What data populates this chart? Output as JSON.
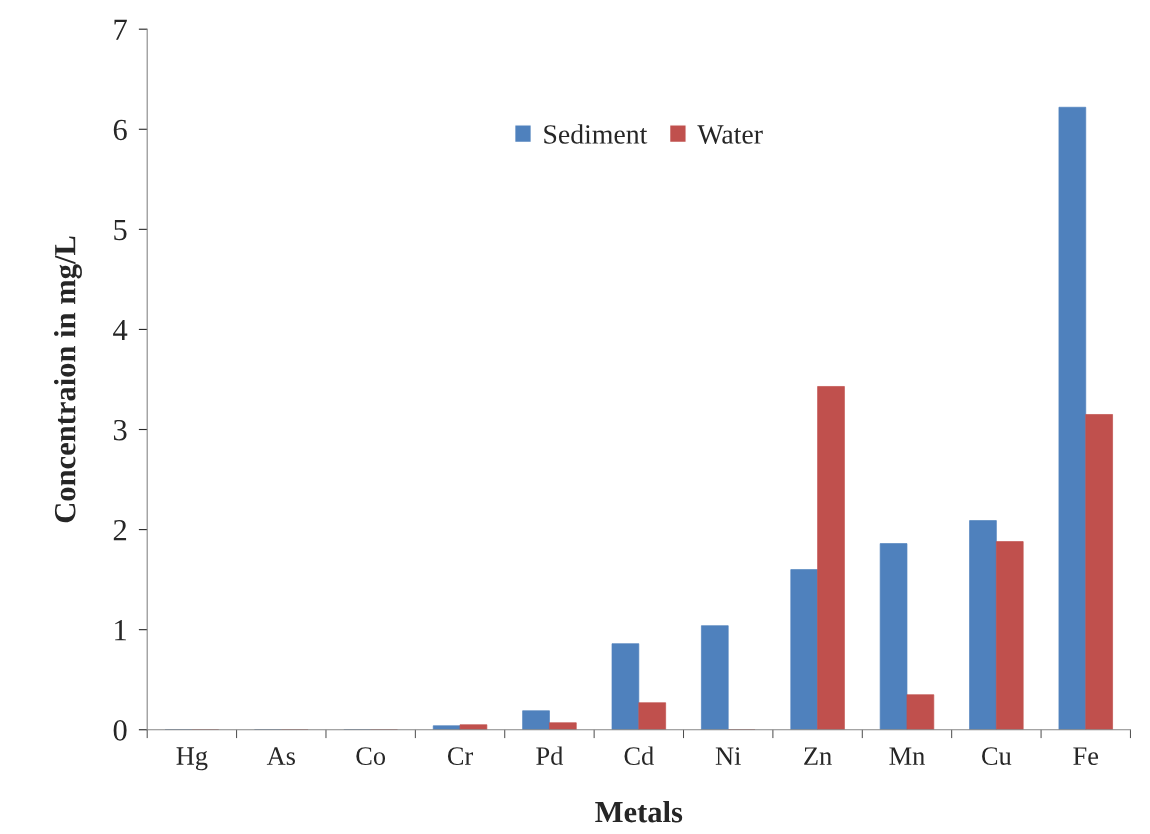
{
  "chart_data": {
    "type": "bar",
    "xlabel": "Metals",
    "ylabel": "Concentraion in mg/L",
    "categories": [
      "Hg",
      "As",
      "Co",
      "Cr",
      "Pd",
      "Cd",
      "Ni",
      "Zn",
      "Mn",
      "Cu",
      "Fe"
    ],
    "series": [
      {
        "name": "Sediment",
        "color": "#4f81bd",
        "values": [
          0,
          0,
          0,
          0.04,
          0.19,
          0.86,
          1.04,
          1.6,
          1.86,
          2.09,
          6.22
        ]
      },
      {
        "name": "Water",
        "color": "#c0504d",
        "values": [
          0,
          0,
          0,
          0.05,
          0.07,
          0.27,
          0,
          3.43,
          0.35,
          1.88,
          3.15
        ]
      }
    ],
    "ylim": [
      0,
      7
    ],
    "yticks": [
      0,
      1,
      2,
      3,
      4,
      5,
      6,
      7
    ],
    "grid": false,
    "legend": "top"
  }
}
